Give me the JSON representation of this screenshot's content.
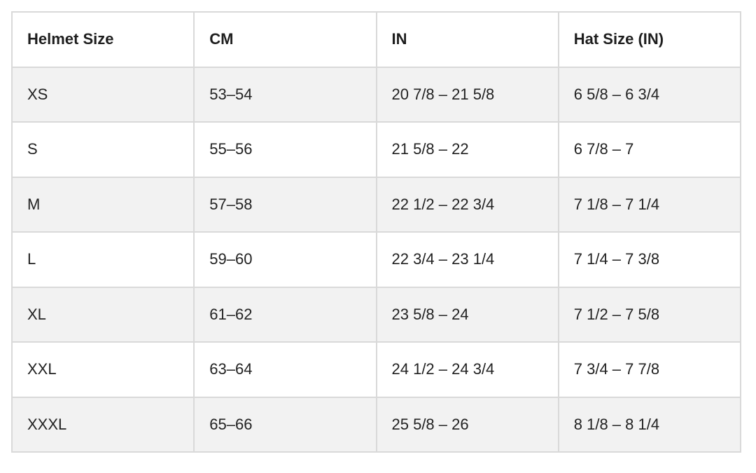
{
  "table": {
    "headers": [
      "Helmet Size",
      "CM",
      "IN",
      "Hat Size (IN)"
    ],
    "rows": [
      [
        "XS",
        "53–54",
        "20 7/8 – 21 5/8",
        "6 5/8 – 6 3/4"
      ],
      [
        "S",
        "55–56",
        "21 5/8 – 22",
        "6 7/8 – 7"
      ],
      [
        "M",
        "57–58",
        "22 1/2 – 22 3/4",
        "7 1/8 – 7 1/4"
      ],
      [
        "L",
        "59–60",
        "22 3/4 – 23 1/4",
        "7 1/4 – 7 3/8"
      ],
      [
        "XL",
        "61–62",
        "23 5/8 – 24",
        "7 1/2 – 7 5/8"
      ],
      [
        "XXL",
        "63–64",
        "24 1/2 – 24 3/4",
        "7 3/4 – 7 7/8"
      ],
      [
        "XXXL",
        "65–66",
        "25 5/8 – 26",
        "8 1/8 – 8 1/4"
      ]
    ]
  }
}
